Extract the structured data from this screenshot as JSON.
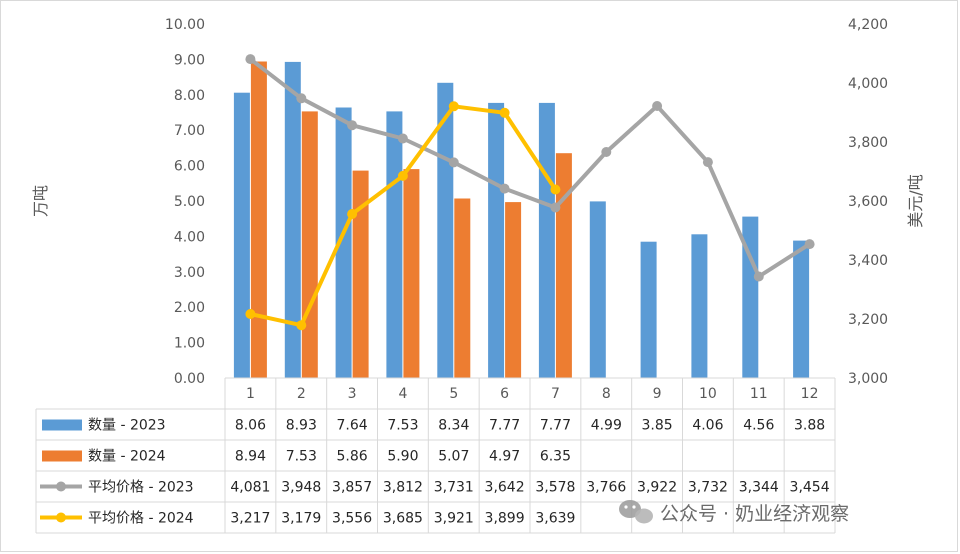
{
  "chart_data": {
    "type": "bar",
    "categories": [
      "1",
      "2",
      "3",
      "4",
      "5",
      "6",
      "7",
      "8",
      "9",
      "10",
      "11",
      "12"
    ],
    "y_left": {
      "label": "万吨",
      "range": [
        0,
        10
      ],
      "ticks": [
        "0.00",
        "1.00",
        "2.00",
        "3.00",
        "4.00",
        "5.00",
        "6.00",
        "7.00",
        "8.00",
        "9.00",
        "10.00"
      ]
    },
    "y_right": {
      "label": "美元/吨",
      "range": [
        3000,
        4200
      ],
      "ticks": [
        "3,000",
        "3,200",
        "3,400",
        "3,600",
        "3,800",
        "4,000",
        "4,200"
      ]
    },
    "series": [
      {
        "name": "数量 - 2023",
        "type": "bar",
        "axis": "left",
        "color": "#5B9BD5",
        "values": [
          8.06,
          8.93,
          7.64,
          7.53,
          8.34,
          7.77,
          7.77,
          4.99,
          3.85,
          4.06,
          4.56,
          3.88
        ],
        "labels": [
          "8.06",
          "8.93",
          "7.64",
          "7.53",
          "8.34",
          "7.77",
          "7.77",
          "4.99",
          "3.85",
          "4.06",
          "4.56",
          "3.88"
        ]
      },
      {
        "name": "数量 - 2024",
        "type": "bar",
        "axis": "left",
        "color": "#ED7D31",
        "values": [
          8.94,
          7.53,
          5.86,
          5.9,
          5.07,
          4.97,
          6.35,
          null,
          null,
          null,
          null,
          null
        ],
        "labels": [
          "8.94",
          "7.53",
          "5.86",
          "5.90",
          "5.07",
          "4.97",
          "6.35",
          "",
          "",
          "",
          "",
          ""
        ]
      },
      {
        "name": "平均价格 - 2023",
        "type": "line",
        "axis": "right",
        "color": "#A5A5A5",
        "values": [
          4081,
          3948,
          3857,
          3812,
          3731,
          3642,
          3578,
          3766,
          3922,
          3732,
          3344,
          3454
        ],
        "labels": [
          "4,081",
          "3,948",
          "3,857",
          "3,812",
          "3,731",
          "3,642",
          "3,578",
          "3,766",
          "3,922",
          "3,732",
          "3,344",
          "3,454"
        ]
      },
      {
        "name": "平均价格 - 2024",
        "type": "line",
        "axis": "right",
        "color": "#FFC000",
        "values": [
          3217,
          3179,
          3556,
          3685,
          3921,
          3899,
          3639,
          null,
          null,
          null,
          null,
          null
        ],
        "labels": [
          "3,217",
          "3,179",
          "3,556",
          "3,685",
          "3,921",
          "3,899",
          "3,639",
          "",
          "",
          "",
          "",
          ""
        ]
      }
    ],
    "legend": "data-table",
    "grid": false
  },
  "watermark": {
    "icon": "wechat-icon",
    "text": "公众号 · 奶业经济观察"
  }
}
